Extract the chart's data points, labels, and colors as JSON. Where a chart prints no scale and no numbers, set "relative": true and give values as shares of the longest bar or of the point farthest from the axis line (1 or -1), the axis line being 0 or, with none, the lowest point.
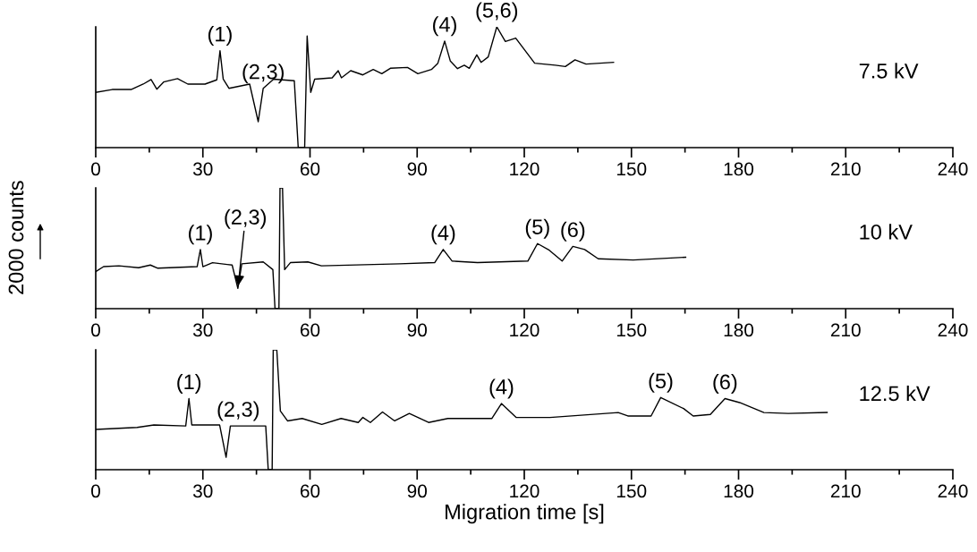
{
  "chart_data": [
    {
      "type": "line",
      "relative": true,
      "xlim": [
        0,
        240
      ],
      "xticks": [
        0,
        30,
        60,
        90,
        120,
        150,
        180,
        210,
        240
      ],
      "grid": false,
      "legend": false,
      "marker": "none",
      "line_style": "solid",
      "series": [
        {
          "color": "#000000",
          "x": [
            0,
            4.6,
            9.9,
            13.3,
            15.5,
            17.1,
            19,
            22.9,
            25.8,
            30.6,
            33.9,
            34.8,
            35.7,
            37.3,
            43.1,
            45.5,
            46.9,
            49.8,
            55.6,
            56.7,
            58.5,
            59.2,
            60.2,
            61.3,
            66.2,
            67.9,
            68.8,
            71.4,
            74.8,
            77.7,
            80.1,
            82.5,
            87.3,
            90.2,
            94,
            95.8,
            97.7,
            99.3,
            101.3,
            103.2,
            104.6,
            106.7,
            107.9,
            109.9,
            112.3,
            114.7,
            117.6,
            122.9,
            128.7,
            131.5,
            134.2,
            137.3,
            145
          ],
          "values": [
            0.457,
            0.481,
            0.481,
            0.526,
            0.564,
            0.484,
            0.543,
            0.571,
            0.526,
            0.526,
            0.561,
            0.803,
            0.567,
            0.491,
            0.526,
            0.215,
            0.491,
            0.567,
            0.554,
            0,
            0,
            0.924,
            0.457,
            0.567,
            0.578,
            0.637,
            0.578,
            0.637,
            0.602,
            0.647,
            0.612,
            0.657,
            0.664,
            0.612,
            0.647,
            0.699,
            0.882,
            0.716,
            0.654,
            0.682,
            0.657,
            0.768,
            0.706,
            0.751,
            1.0,
            0.879,
            0.907,
            0.699,
            0.682,
            0.671,
            0.727,
            0.692,
            0.706
          ]
        }
      ],
      "annotations": [
        {
          "text": "(1)",
          "x": 34.8,
          "y": 0.803
        },
        {
          "text": "(2,3)",
          "x": 46.9,
          "y": 0.491
        },
        {
          "text": "(4)",
          "x": 97.7,
          "y": 0.882
        },
        {
          "text": "(5,6)",
          "x": 112.3,
          "y": 1.0
        },
        "7.5 kV"
      ]
    },
    {
      "type": "line",
      "relative": true,
      "xlim": [
        0,
        240
      ],
      "xticks": [
        0,
        30,
        60,
        90,
        120,
        150,
        180,
        210,
        240
      ],
      "grid": false,
      "legend": false,
      "marker": "none",
      "line_style": "solid",
      "ylabel": "2000 counts",
      "series": [
        {
          "color": "#000000",
          "x": [
            0,
            2.2,
            6.5,
            12,
            15.3,
            17.4,
            28.4,
            29.3,
            30,
            32.7,
            38.2,
            39.8,
            40.9,
            46.9,
            49.6,
            50.2,
            51.3,
            51.6,
            52.3,
            52.9,
            54.5,
            59.4,
            63.2,
            85.1,
            94.9,
            97.3,
            99.8,
            106.9,
            121,
            123.7,
            127,
            130.6,
            133.6,
            136.9,
            140.7,
            150.5,
            165.2
          ],
          "values": [
            0.306,
            0.348,
            0.355,
            0.339,
            0.361,
            0.335,
            0.348,
            0.49,
            0.348,
            0.381,
            0.361,
            0.168,
            0.371,
            0.387,
            0.323,
            0,
            0,
            1,
            1,
            0.323,
            0.381,
            0.387,
            0.355,
            0.371,
            0.381,
            0.49,
            0.394,
            0.381,
            0.394,
            0.539,
            0.484,
            0.394,
            0.516,
            0.49,
            0.413,
            0.403,
            0.426
          ]
        }
      ],
      "annotations": [
        {
          "text": "(1)",
          "x": 29.3,
          "y": 0.49
        },
        {
          "text": "(2,3)",
          "x": 39.8,
          "y": 0.168
        },
        {
          "text": "(4)",
          "x": 97.3,
          "y": 0.49
        },
        {
          "text": "(5)",
          "x": 123.7,
          "y": 0.539
        },
        {
          "text": "(6)",
          "x": 133.6,
          "y": 0.516
        },
        "10 kV"
      ]
    },
    {
      "type": "line",
      "relative": true,
      "xlim": [
        0,
        240
      ],
      "xticks": [
        0,
        30,
        60,
        90,
        120,
        150,
        180,
        210,
        240
      ],
      "grid": false,
      "legend": false,
      "marker": "none",
      "line_style": "solid",
      "xlabel": "Migration time [s]",
      "series": [
        {
          "color": "#000000",
          "x": [
            0,
            11.6,
            16.3,
            25.2,
            26.1,
            26.9,
            34.7,
            36.5,
            37.7,
            47.6,
            48.3,
            49.4,
            49.7,
            50.7,
            51.7,
            53.7,
            57.8,
            63.3,
            68.7,
            73.5,
            74.8,
            76.9,
            80.3,
            83.7,
            87.8,
            93.2,
            98.6,
            110.9,
            113.6,
            117.7,
            127.2,
            146.3,
            149,
            155.5,
            158.2,
            164.6,
            167.3,
            172.1,
            176.2,
            180.3,
            187.1,
            193.9,
            204.8
          ],
          "values": [
            0.336,
            0.353,
            0.373,
            0.365,
            0.593,
            0.373,
            0.373,
            0.104,
            0.365,
            0.365,
            0,
            0,
            1,
            1,
            0.49,
            0.407,
            0.427,
            0.378,
            0.427,
            0.394,
            0.436,
            0.394,
            0.481,
            0.407,
            0.469,
            0.394,
            0.427,
            0.427,
            0.552,
            0.436,
            0.436,
            0.477,
            0.448,
            0.448,
            0.602,
            0.51,
            0.448,
            0.461,
            0.593,
            0.56,
            0.477,
            0.469,
            0.477
          ]
        }
      ],
      "annotations": [
        {
          "text": "(1)",
          "x": 26.1,
          "y": 0.593
        },
        {
          "text": "(2,3)",
          "x": 39.9,
          "y": 0.365
        },
        {
          "text": "(4)",
          "x": 113.6,
          "y": 0.552
        },
        {
          "text": "(5)",
          "x": 158.2,
          "y": 0.602
        },
        {
          "text": "(6)",
          "x": 176.2,
          "y": 0.593
        },
        "12.5 kV"
      ]
    }
  ]
}
